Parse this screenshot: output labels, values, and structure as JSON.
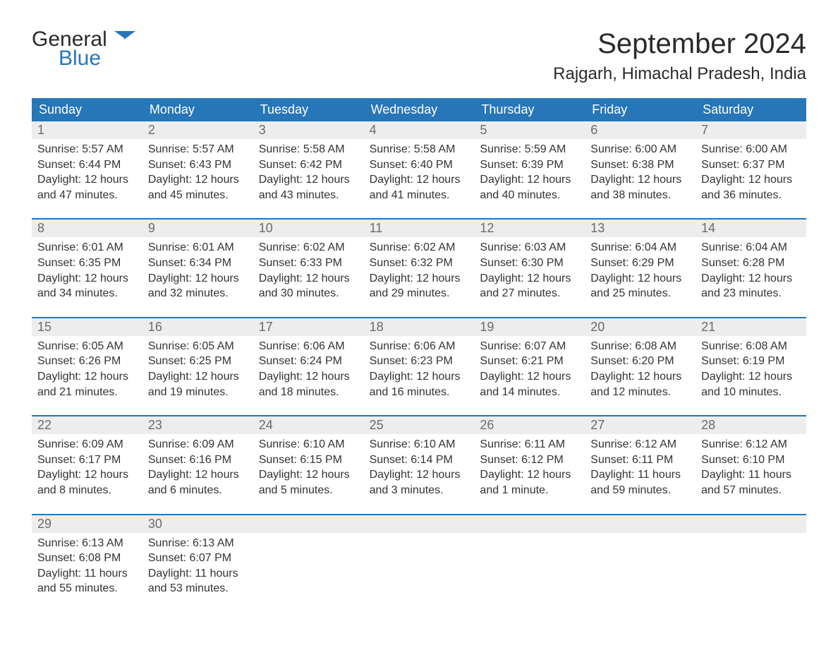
{
  "logo": {
    "line1": "General",
    "line2": "Blue"
  },
  "title": "September 2024",
  "location": "Rajgarh, Himachal Pradesh, India",
  "colors": {
    "header_bg": "#2676b8",
    "header_text": "#ffffff",
    "daynum_bg": "#ededed",
    "daynum_text": "#6b6b6b",
    "body_text": "#333333",
    "week_border": "#2676b8",
    "logo_blue": "#2676b8",
    "page_bg": "#ffffff"
  },
  "day_headers": [
    "Sunday",
    "Monday",
    "Tuesday",
    "Wednesday",
    "Thursday",
    "Friday",
    "Saturday"
  ],
  "weeks": [
    [
      {
        "day": "1",
        "sunrise": "Sunrise: 5:57 AM",
        "sunset": "Sunset: 6:44 PM",
        "d1": "Daylight: 12 hours",
        "d2": "and 47 minutes."
      },
      {
        "day": "2",
        "sunrise": "Sunrise: 5:57 AM",
        "sunset": "Sunset: 6:43 PM",
        "d1": "Daylight: 12 hours",
        "d2": "and 45 minutes."
      },
      {
        "day": "3",
        "sunrise": "Sunrise: 5:58 AM",
        "sunset": "Sunset: 6:42 PM",
        "d1": "Daylight: 12 hours",
        "d2": "and 43 minutes."
      },
      {
        "day": "4",
        "sunrise": "Sunrise: 5:58 AM",
        "sunset": "Sunset: 6:40 PM",
        "d1": "Daylight: 12 hours",
        "d2": "and 41 minutes."
      },
      {
        "day": "5",
        "sunrise": "Sunrise: 5:59 AM",
        "sunset": "Sunset: 6:39 PM",
        "d1": "Daylight: 12 hours",
        "d2": "and 40 minutes."
      },
      {
        "day": "6",
        "sunrise": "Sunrise: 6:00 AM",
        "sunset": "Sunset: 6:38 PM",
        "d1": "Daylight: 12 hours",
        "d2": "and 38 minutes."
      },
      {
        "day": "7",
        "sunrise": "Sunrise: 6:00 AM",
        "sunset": "Sunset: 6:37 PM",
        "d1": "Daylight: 12 hours",
        "d2": "and 36 minutes."
      }
    ],
    [
      {
        "day": "8",
        "sunrise": "Sunrise: 6:01 AM",
        "sunset": "Sunset: 6:35 PM",
        "d1": "Daylight: 12 hours",
        "d2": "and 34 minutes."
      },
      {
        "day": "9",
        "sunrise": "Sunrise: 6:01 AM",
        "sunset": "Sunset: 6:34 PM",
        "d1": "Daylight: 12 hours",
        "d2": "and 32 minutes."
      },
      {
        "day": "10",
        "sunrise": "Sunrise: 6:02 AM",
        "sunset": "Sunset: 6:33 PM",
        "d1": "Daylight: 12 hours",
        "d2": "and 30 minutes."
      },
      {
        "day": "11",
        "sunrise": "Sunrise: 6:02 AM",
        "sunset": "Sunset: 6:32 PM",
        "d1": "Daylight: 12 hours",
        "d2": "and 29 minutes."
      },
      {
        "day": "12",
        "sunrise": "Sunrise: 6:03 AM",
        "sunset": "Sunset: 6:30 PM",
        "d1": "Daylight: 12 hours",
        "d2": "and 27 minutes."
      },
      {
        "day": "13",
        "sunrise": "Sunrise: 6:04 AM",
        "sunset": "Sunset: 6:29 PM",
        "d1": "Daylight: 12 hours",
        "d2": "and 25 minutes."
      },
      {
        "day": "14",
        "sunrise": "Sunrise: 6:04 AM",
        "sunset": "Sunset: 6:28 PM",
        "d1": "Daylight: 12 hours",
        "d2": "and 23 minutes."
      }
    ],
    [
      {
        "day": "15",
        "sunrise": "Sunrise: 6:05 AM",
        "sunset": "Sunset: 6:26 PM",
        "d1": "Daylight: 12 hours",
        "d2": "and 21 minutes."
      },
      {
        "day": "16",
        "sunrise": "Sunrise: 6:05 AM",
        "sunset": "Sunset: 6:25 PM",
        "d1": "Daylight: 12 hours",
        "d2": "and 19 minutes."
      },
      {
        "day": "17",
        "sunrise": "Sunrise: 6:06 AM",
        "sunset": "Sunset: 6:24 PM",
        "d1": "Daylight: 12 hours",
        "d2": "and 18 minutes."
      },
      {
        "day": "18",
        "sunrise": "Sunrise: 6:06 AM",
        "sunset": "Sunset: 6:23 PM",
        "d1": "Daylight: 12 hours",
        "d2": "and 16 minutes."
      },
      {
        "day": "19",
        "sunrise": "Sunrise: 6:07 AM",
        "sunset": "Sunset: 6:21 PM",
        "d1": "Daylight: 12 hours",
        "d2": "and 14 minutes."
      },
      {
        "day": "20",
        "sunrise": "Sunrise: 6:08 AM",
        "sunset": "Sunset: 6:20 PM",
        "d1": "Daylight: 12 hours",
        "d2": "and 12 minutes."
      },
      {
        "day": "21",
        "sunrise": "Sunrise: 6:08 AM",
        "sunset": "Sunset: 6:19 PM",
        "d1": "Daylight: 12 hours",
        "d2": "and 10 minutes."
      }
    ],
    [
      {
        "day": "22",
        "sunrise": "Sunrise: 6:09 AM",
        "sunset": "Sunset: 6:17 PM",
        "d1": "Daylight: 12 hours",
        "d2": "and 8 minutes."
      },
      {
        "day": "23",
        "sunrise": "Sunrise: 6:09 AM",
        "sunset": "Sunset: 6:16 PM",
        "d1": "Daylight: 12 hours",
        "d2": "and 6 minutes."
      },
      {
        "day": "24",
        "sunrise": "Sunrise: 6:10 AM",
        "sunset": "Sunset: 6:15 PM",
        "d1": "Daylight: 12 hours",
        "d2": "and 5 minutes."
      },
      {
        "day": "25",
        "sunrise": "Sunrise: 6:10 AM",
        "sunset": "Sunset: 6:14 PM",
        "d1": "Daylight: 12 hours",
        "d2": "and 3 minutes."
      },
      {
        "day": "26",
        "sunrise": "Sunrise: 6:11 AM",
        "sunset": "Sunset: 6:12 PM",
        "d1": "Daylight: 12 hours",
        "d2": "and 1 minute."
      },
      {
        "day": "27",
        "sunrise": "Sunrise: 6:12 AM",
        "sunset": "Sunset: 6:11 PM",
        "d1": "Daylight: 11 hours",
        "d2": "and 59 minutes."
      },
      {
        "day": "28",
        "sunrise": "Sunrise: 6:12 AM",
        "sunset": "Sunset: 6:10 PM",
        "d1": "Daylight: 11 hours",
        "d2": "and 57 minutes."
      }
    ],
    [
      {
        "day": "29",
        "sunrise": "Sunrise: 6:13 AM",
        "sunset": "Sunset: 6:08 PM",
        "d1": "Daylight: 11 hours",
        "d2": "and 55 minutes."
      },
      {
        "day": "30",
        "sunrise": "Sunrise: 6:13 AM",
        "sunset": "Sunset: 6:07 PM",
        "d1": "Daylight: 11 hours",
        "d2": "and 53 minutes."
      },
      {
        "empty": true
      },
      {
        "empty": true
      },
      {
        "empty": true
      },
      {
        "empty": true
      },
      {
        "empty": true
      }
    ]
  ]
}
